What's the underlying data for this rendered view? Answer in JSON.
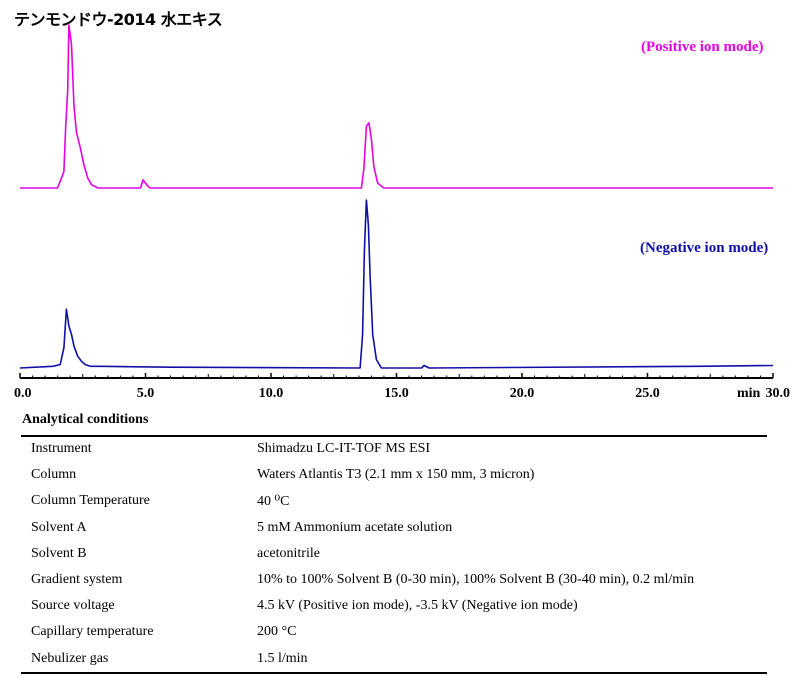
{
  "title": "テンモンドウ-2014 水エキス",
  "labels": {
    "positive": "(Positive ion mode)",
    "negative": "(Negative ion mode)"
  },
  "colors": {
    "positive": "#e600e6",
    "negative": "#1010a8",
    "axis": "#000000"
  },
  "chart_data": {
    "type": "line",
    "xlabel": "min",
    "xlim": [
      0,
      30
    ],
    "x_ticks": [
      "0.0",
      "5.0",
      "10.0",
      "15.0",
      "20.0",
      "25.0",
      "30.0"
    ],
    "grid": false,
    "series": [
      {
        "name": "(Positive ion mode)",
        "x": [
          0.0,
          1.5,
          1.75,
          1.82,
          1.9,
          1.95,
          2.05,
          2.15,
          2.25,
          2.4,
          2.55,
          2.7,
          2.85,
          3.1,
          4.8,
          4.9,
          5.1,
          5.2,
          13.6,
          13.7,
          13.8,
          13.9,
          14.0,
          14.1,
          14.25,
          14.5,
          30.0
        ],
        "y": [
          0,
          0,
          0.1,
          0.38,
          0.6,
          1.0,
          0.88,
          0.5,
          0.34,
          0.25,
          0.14,
          0.06,
          0.02,
          0,
          0,
          0.05,
          0.01,
          0,
          0,
          0.12,
          0.38,
          0.4,
          0.3,
          0.13,
          0.03,
          0,
          0
        ]
      },
      {
        "name": "(Negative ion mode)",
        "x": [
          0.0,
          1.3,
          1.6,
          1.75,
          1.85,
          1.95,
          2.05,
          2.15,
          2.3,
          2.45,
          2.6,
          2.8,
          3.2,
          6.0,
          13.55,
          13.65,
          13.72,
          13.8,
          13.88,
          13.95,
          14.05,
          14.2,
          14.4,
          16.0,
          16.1,
          16.3,
          27.0,
          30.0
        ],
        "y": [
          0,
          0.01,
          0.02,
          0.12,
          0.35,
          0.25,
          0.2,
          0.13,
          0.07,
          0.04,
          0.02,
          0.01,
          0.01,
          0.005,
          0,
          0.2,
          0.7,
          1.0,
          0.85,
          0.55,
          0.2,
          0.05,
          0,
          0,
          0.015,
          0,
          0.01,
          0.015
        ]
      }
    ]
  },
  "conditions": {
    "title": "Analytical conditions",
    "rows": [
      {
        "key": "Instrument",
        "value": "Shimadzu LC-IT-TOF MS ESI"
      },
      {
        "key": "Column",
        "value": "Waters Atlantis T3 (2.1 mm x 150 mm, 3 micron)"
      },
      {
        "key": "Column Temperature",
        "value": "40 ⁰C"
      },
      {
        "key": "Solvent A",
        "value": "5 mM Ammonium acetate solution"
      },
      {
        "key": "Solvent B",
        "value": "acetonitrile"
      },
      {
        "key": "Gradient system",
        "value": "10% to 100% Solvent B (0-30 min), 100% Solvent B (30-40 min), 0.2 ml/min"
      },
      {
        "key": "Source voltage",
        "value": "4.5 kV (Positive ion mode), -3.5 kV (Negative ion mode)"
      },
      {
        "key": "Capillary temperature",
        "value": "200 °C"
      },
      {
        "key": "Nebulizer gas",
        "value": "1.5 l/min"
      }
    ]
  }
}
